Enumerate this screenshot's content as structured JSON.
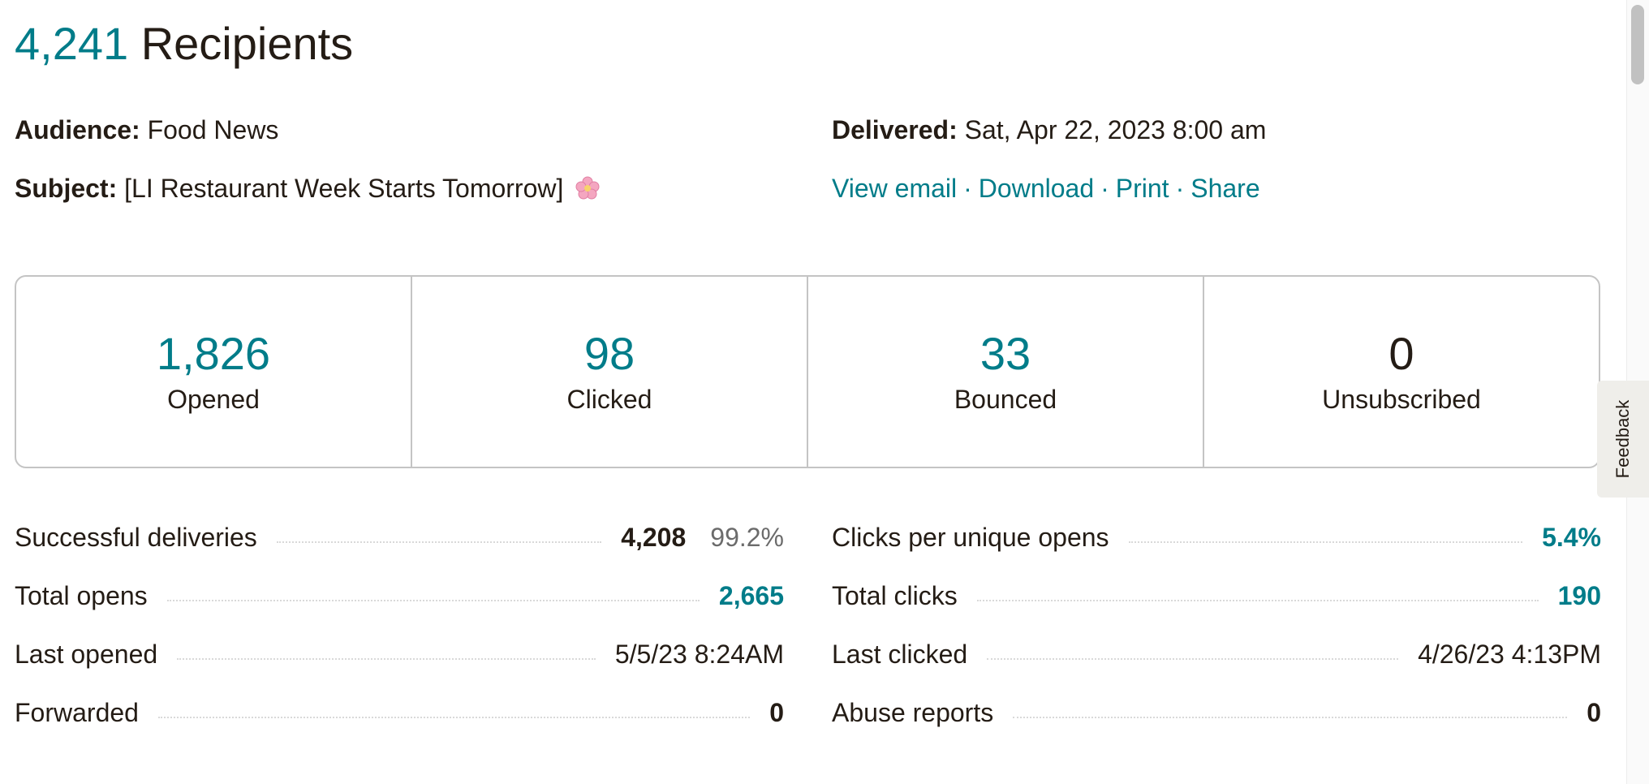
{
  "header": {
    "count": "4,241",
    "label": "Recipients"
  },
  "meta": {
    "audience_label": "Audience:",
    "audience_value": "Food News",
    "subject_label": "Subject:",
    "subject_value": "[LI Restaurant Week Starts Tomorrow]",
    "subject_icon": "cherry-blossom-emoji",
    "delivered_label": "Delivered:",
    "delivered_value": "Sat, Apr 22, 2023 8:00 am"
  },
  "links": {
    "view_email": "View email",
    "download": "Download",
    "print": "Print",
    "share": "Share",
    "separator": "·"
  },
  "stats": [
    {
      "value": "1,826",
      "label": "Opened"
    },
    {
      "value": "98",
      "label": "Clicked"
    },
    {
      "value": "33",
      "label": "Bounced"
    },
    {
      "value": "0",
      "label": "Unsubscribed"
    }
  ],
  "metrics_left": [
    {
      "label": "Successful deliveries",
      "value": "4,208",
      "percent": "99.2%"
    },
    {
      "label": "Total opens",
      "value": "2,665"
    },
    {
      "label": "Last opened",
      "value": "5/5/23 8:24AM"
    },
    {
      "label": "Forwarded",
      "value": "0"
    }
  ],
  "metrics_right": [
    {
      "label": "Clicks per unique opens",
      "value": "5.4%"
    },
    {
      "label": "Total clicks",
      "value": "190"
    },
    {
      "label": "Last clicked",
      "value": "4/26/23 4:13PM"
    },
    {
      "label": "Abuse reports",
      "value": "0"
    }
  ],
  "feedback": {
    "label": "Feedback"
  },
  "colors": {
    "accent": "#007c89",
    "text": "#241c15",
    "muted": "#6b6b6b",
    "border": "#c4c4c4"
  }
}
